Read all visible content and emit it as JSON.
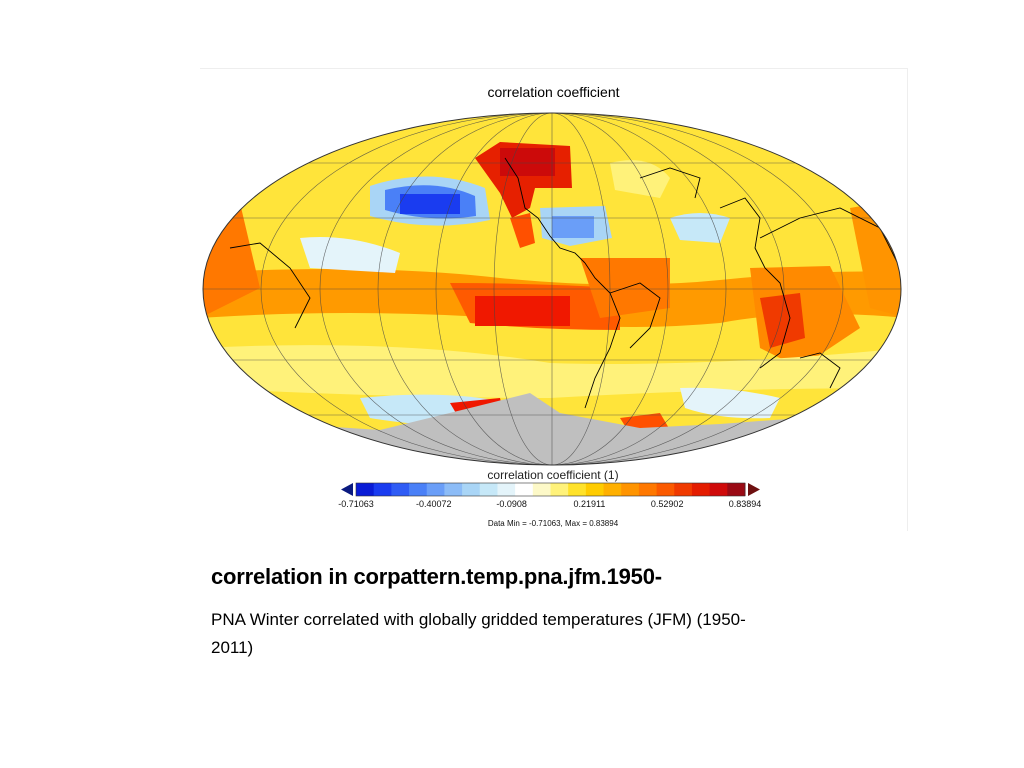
{
  "map": {
    "title": "correlation coefficient",
    "projection": "mollweide",
    "colorbar": {
      "title": "correlation coefficient (1)",
      "ticks": [
        "-0.71063",
        "-0.40072",
        "-0.0908",
        "0.21911",
        "0.52902",
        "0.83894"
      ],
      "min": -0.71063,
      "max": 0.83894,
      "colors": [
        "#0a1cd6",
        "#1a3cf0",
        "#2f5cf5",
        "#4a80f7",
        "#6a9ef8",
        "#8cbcf7",
        "#a9d5f6",
        "#c6e8f8",
        "#e4f4fa",
        "#ffffff",
        "#fdf9c8",
        "#fff27a",
        "#ffe22a",
        "#ffcc00",
        "#ffb000",
        "#ff9400",
        "#ff7800",
        "#fb5a00",
        "#f03a00",
        "#e41c00",
        "#cf0a0a",
        "#9a0a14"
      ],
      "low_arrow_color": "#0a1a80",
      "high_arrow_color": "#6e1010"
    },
    "data_range_text": "Data Min = -0.71063, Max = 0.83894",
    "missing_color": "#bfbfbf"
  },
  "caption": {
    "title": "correlation in corpattern.temp.pna.jfm.1950-",
    "description": "PNA Winter correlated with globally gridded temperatures (JFM) (1950-2011)"
  }
}
